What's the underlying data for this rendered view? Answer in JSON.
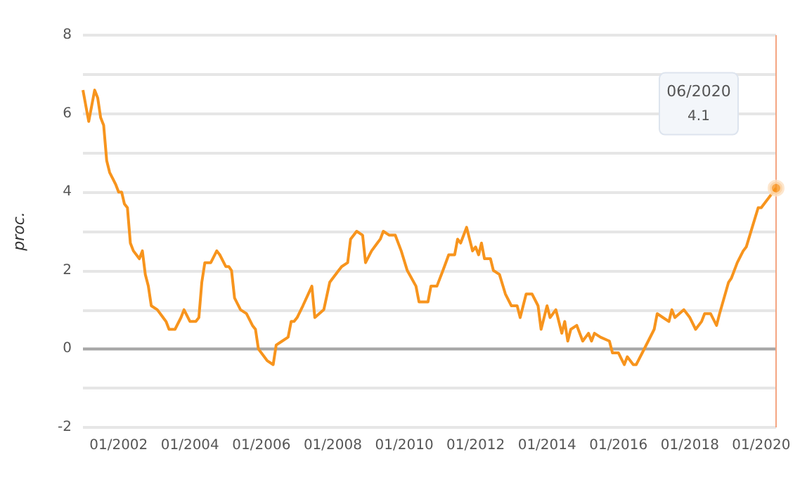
{
  "chart_data": {
    "type": "line",
    "ylabel": "proc.",
    "x": [
      "2001-01",
      "2001-03",
      "2001-05",
      "2001-06",
      "2001-07",
      "2001-08",
      "2001-09",
      "2001-10",
      "2001-12",
      "2002-01",
      "2002-02",
      "2002-03",
      "2002-04",
      "2002-05",
      "2002-06",
      "2002-08",
      "2002-09",
      "2002-10",
      "2002-11",
      "2002-12",
      "2003-02",
      "2003-04",
      "2003-05",
      "2003-06",
      "2003-08",
      "2003-10",
      "2003-11",
      "2004-01",
      "2004-03",
      "2004-04",
      "2004-05",
      "2004-06",
      "2004-08",
      "2004-10",
      "2004-11",
      "2005-01",
      "2005-02",
      "2005-03",
      "2005-04",
      "2005-06",
      "2005-08",
      "2005-10",
      "2005-11",
      "2005-12",
      "2006-03",
      "2006-05",
      "2006-06",
      "2006-08",
      "2006-10",
      "2006-11",
      "2006-12",
      "2007-01",
      "2007-03",
      "2007-06",
      "2007-07",
      "2007-10",
      "2007-12",
      "2008-03",
      "2008-04",
      "2008-06",
      "2008-07",
      "2008-09",
      "2008-11",
      "2008-12",
      "2009-02",
      "2009-04",
      "2009-05",
      "2009-06",
      "2009-08",
      "2009-10",
      "2009-12",
      "2010-02",
      "2010-05",
      "2010-06",
      "2010-09",
      "2010-10",
      "2010-12",
      "2011-02",
      "2011-04",
      "2011-06",
      "2011-07",
      "2011-08",
      "2011-10",
      "2011-12",
      "2012-01",
      "2012-02",
      "2012-03",
      "2012-04",
      "2012-06",
      "2012-07",
      "2012-09",
      "2012-11",
      "2013-01",
      "2013-03",
      "2013-04",
      "2013-06",
      "2013-07",
      "2013-08",
      "2013-10",
      "2013-11",
      "2014-01",
      "2014-02",
      "2014-04",
      "2014-06",
      "2014-07",
      "2014-08",
      "2014-09",
      "2014-11",
      "2015-01",
      "2015-03",
      "2015-04",
      "2015-05",
      "2015-07",
      "2015-10",
      "2015-11",
      "2016-01",
      "2016-03",
      "2016-04",
      "2016-06",
      "2016-07",
      "2016-09",
      "2016-11",
      "2017-01",
      "2017-02",
      "2017-04",
      "2017-06",
      "2017-07",
      "2017-08",
      "2017-11",
      "2018-01",
      "2018-03",
      "2018-05",
      "2018-06",
      "2018-08",
      "2018-10",
      "2018-11",
      "2019-02",
      "2019-03",
      "2019-05",
      "2019-07",
      "2019-08",
      "2019-10",
      "2019-12",
      "2020-01",
      "2020-06"
    ],
    "series": [
      {
        "color": "#f7941d",
        "values": [
          6.6,
          5.8,
          6.6,
          6.4,
          5.9,
          5.7,
          4.8,
          4.5,
          4.2,
          4.0,
          4.0,
          3.7,
          3.6,
          2.7,
          2.5,
          2.3,
          2.5,
          1.9,
          1.6,
          1.1,
          1.0,
          0.8,
          0.7,
          0.5,
          0.5,
          0.8,
          1.0,
          0.7,
          0.7,
          0.8,
          1.7,
          2.2,
          2.2,
          2.5,
          2.4,
          2.1,
          2.1,
          2.0,
          1.3,
          1.0,
          0.9,
          0.6,
          0.5,
          0.0,
          -0.3,
          -0.4,
          0.1,
          0.2,
          0.3,
          0.7,
          0.7,
          0.8,
          1.1,
          1.6,
          0.8,
          1.0,
          1.7,
          2.0,
          2.1,
          2.2,
          2.8,
          3.0,
          2.9,
          2.2,
          2.5,
          2.7,
          2.8,
          3.0,
          2.9,
          2.9,
          2.5,
          2.0,
          1.6,
          1.2,
          1.2,
          1.6,
          1.6,
          2.0,
          2.4,
          2.4,
          2.8,
          2.7,
          3.1,
          2.5,
          2.6,
          2.4,
          2.7,
          2.3,
          2.3,
          2.0,
          1.9,
          1.4,
          1.1,
          1.1,
          0.8,
          1.4,
          1.4,
          1.4,
          1.1,
          0.5,
          1.1,
          0.8,
          1.0,
          0.4,
          0.7,
          0.2,
          0.5,
          0.6,
          0.2,
          0.4,
          0.2,
          0.4,
          0.3,
          0.2,
          -0.1,
          -0.1,
          -0.4,
          -0.2,
          -0.4,
          -0.4,
          -0.1,
          0.2,
          0.5,
          0.9,
          0.8,
          0.7,
          1.0,
          0.8,
          1.0,
          0.8,
          0.5,
          0.7,
          0.9,
          0.9,
          0.6,
          0.9,
          1.7,
          1.8,
          2.2,
          2.5,
          2.6,
          3.1,
          3.6,
          3.6,
          4.1
        ]
      }
    ],
    "xlim": [
      "2001-01",
      "2020-06"
    ],
    "xticks": [
      {
        "value": "2002-01",
        "label": "01/2002"
      },
      {
        "value": "2004-01",
        "label": "01/2004"
      },
      {
        "value": "2006-01",
        "label": "01/2006"
      },
      {
        "value": "2008-01",
        "label": "01/2008"
      },
      {
        "value": "2010-01",
        "label": "01/2010"
      },
      {
        "value": "2012-01",
        "label": "01/2012"
      },
      {
        "value": "2014-01",
        "label": "01/2014"
      },
      {
        "value": "2016-01",
        "label": "01/2016"
      },
      {
        "value": "2018-01",
        "label": "01/2018"
      },
      {
        "value": "2020-01",
        "label": "01/2020"
      }
    ],
    "ylim": [
      -2,
      8
    ],
    "yticks": [
      -2,
      {
        "value": -1,
        "label": null
      },
      0,
      {
        "value": 1,
        "label": null
      },
      2,
      {
        "value": 3,
        "label": null
      },
      4,
      {
        "value": 5,
        "label": null
      },
      6,
      {
        "value": 7,
        "label": null
      },
      8
    ],
    "grid": "y",
    "marker": "none",
    "line_style": "solid",
    "ref_lines": [
      {
        "axis": "y",
        "value": 0,
        "color": "#a6a6a6"
      },
      {
        "axis": "x",
        "value": "2020-06",
        "color": "#f4a582"
      }
    ],
    "annotations": [
      "06/2020",
      "4.1"
    ]
  }
}
